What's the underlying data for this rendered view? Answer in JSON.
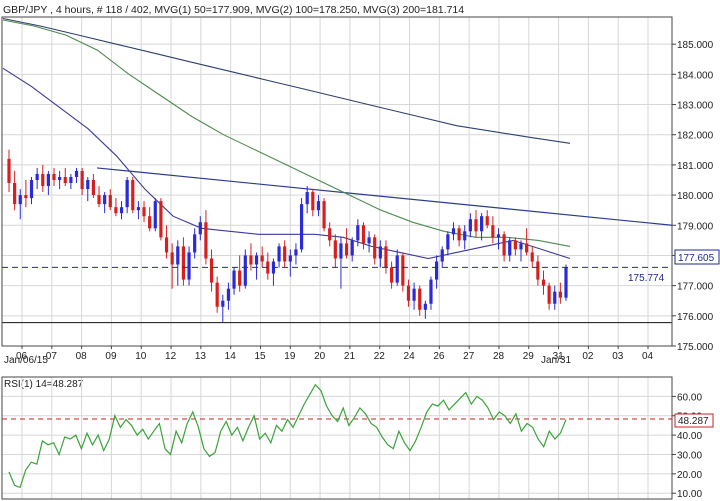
{
  "header": {
    "symbol": "GBP/JPY",
    "timeframe": ", 4 hours, # 118 / 402,",
    "ma1": "MVG(1) 50=177.909,",
    "ma2": "MVG(2) 100=178.250,",
    "ma3": "MVG(3) 200=181.714"
  },
  "rsi_header": "RSI(1) 14=48.287",
  "price_tags": {
    "current": "177.605",
    "support": "175.774"
  },
  "rsi_tag": "48.287",
  "date_labels": {
    "start": "Jan/06/15",
    "end": "Jan/31"
  },
  "colors": {
    "bull": "#2a2ad8",
    "bear": "#d62020",
    "ma50": "#3a3a9a",
    "ma100": "#4e8a4e",
    "ma200": "#2c3f6e",
    "trendline": "#2b3b90",
    "rsi": "#3aa33a",
    "ref_line": "#c82020",
    "price_line": "#1f2a8c",
    "grid": "#d7d7d7"
  },
  "chart_data": [
    {
      "type": "candlestick",
      "title": "GBP/JPY , 4 hours",
      "ylim": [
        175.0,
        185.9
      ],
      "yticks": [
        175.0,
        176.0,
        177.0,
        178.0,
        179.0,
        180.0,
        181.0,
        182.0,
        183.0,
        184.0,
        185.0
      ],
      "x_tick_labels": [
        "06",
        "07",
        "08",
        "09",
        "10",
        "12",
        "13",
        "14",
        "15",
        "19",
        "20",
        "21",
        "22",
        "24",
        "26",
        "27",
        "28",
        "29",
        "31",
        "02",
        "03",
        "04"
      ],
      "current_price": 177.605,
      "support_level": 175.774,
      "moving_averages": [
        {
          "name": "MVG(1) 50",
          "last": 177.909,
          "y": [
            184.2,
            183.6,
            182.9,
            182.2,
            181.3,
            180.2,
            179.3,
            178.9,
            178.8,
            178.7,
            178.7,
            178.7,
            178.6,
            178.3,
            178.1,
            177.9,
            178.1,
            178.3,
            178.5,
            178.2,
            177.9
          ]
        },
        {
          "name": "MVG(2) 100",
          "last": 178.25,
          "y": [
            185.8,
            185.6,
            185.3,
            184.8,
            184.0,
            183.3,
            182.6,
            182.0,
            181.5,
            181.0,
            180.5,
            180.0,
            179.5,
            179.1,
            178.8,
            178.6,
            178.6,
            178.5,
            178.3
          ]
        },
        {
          "name": "MVG(3) 200",
          "last": 181.714,
          "y": [
            185.85,
            185.6,
            185.3,
            185.0,
            184.7,
            184.4,
            184.1,
            183.8,
            183.5,
            183.2,
            182.9,
            182.6,
            182.3,
            182.1,
            181.9,
            181.714
          ]
        }
      ],
      "trendline": {
        "from": 180.9,
        "to": 179.0
      },
      "candles": [
        [
          181.2,
          181.5,
          180.1,
          180.4
        ],
        [
          180.4,
          180.8,
          179.5,
          179.7
        ],
        [
          179.7,
          180.2,
          179.2,
          180.0
        ],
        [
          180.0,
          180.5,
          179.6,
          179.9
        ],
        [
          179.9,
          180.6,
          179.7,
          180.5
        ],
        [
          180.5,
          180.9,
          180.2,
          180.7
        ],
        [
          180.7,
          181.0,
          180.1,
          180.3
        ],
        [
          180.3,
          180.8,
          180.0,
          180.7
        ],
        [
          180.7,
          180.9,
          180.3,
          180.5
        ],
        [
          180.5,
          180.8,
          180.2,
          180.6
        ],
        [
          180.6,
          180.9,
          180.3,
          180.4
        ],
        [
          180.4,
          180.7,
          180.2,
          180.6
        ],
        [
          180.6,
          180.9,
          180.4,
          180.8
        ],
        [
          180.8,
          180.9,
          180.0,
          180.2
        ],
        [
          180.2,
          180.6,
          179.8,
          180.5
        ],
        [
          180.5,
          180.7,
          179.9,
          180.0
        ],
        [
          180.0,
          180.3,
          179.6,
          179.7
        ],
        [
          179.7,
          180.1,
          179.4,
          180.0
        ],
        [
          180.0,
          180.2,
          179.5,
          179.6
        ],
        [
          179.6,
          179.9,
          179.3,
          179.4
        ],
        [
          179.4,
          179.8,
          179.2,
          179.6
        ],
        [
          179.6,
          180.6,
          179.4,
          180.5
        ],
        [
          180.5,
          180.6,
          179.4,
          179.5
        ],
        [
          179.5,
          179.8,
          179.2,
          179.6
        ],
        [
          179.6,
          179.8,
          179.1,
          179.3
        ],
        [
          179.3,
          179.6,
          178.8,
          178.9
        ],
        [
          178.9,
          179.9,
          178.8,
          179.8
        ],
        [
          179.8,
          179.9,
          178.5,
          178.6
        ],
        [
          178.6,
          179.0,
          177.9,
          178.1
        ],
        [
          178.1,
          178.4,
          176.9,
          177.7
        ],
        [
          177.7,
          178.5,
          177.0,
          178.3
        ],
        [
          178.3,
          178.6,
          177.0,
          177.2
        ],
        [
          177.2,
          178.3,
          177.0,
          178.1
        ],
        [
          178.1,
          178.9,
          177.9,
          178.7
        ],
        [
          178.7,
          179.3,
          178.5,
          179.1
        ],
        [
          179.1,
          179.5,
          177.7,
          177.9
        ],
        [
          177.9,
          178.2,
          176.8,
          177.1
        ],
        [
          177.1,
          177.3,
          176.1,
          176.3
        ],
        [
          176.3,
          176.7,
          175.8,
          176.5
        ],
        [
          176.5,
          177.1,
          176.2,
          176.9
        ],
        [
          176.9,
          177.6,
          176.7,
          177.5
        ],
        [
          177.5,
          178.0,
          176.8,
          177.0
        ],
        [
          177.0,
          178.2,
          176.9,
          178.0
        ],
        [
          178.0,
          178.4,
          177.5,
          177.7
        ],
        [
          177.7,
          178.1,
          177.2,
          178.0
        ],
        [
          178.0,
          178.3,
          177.6,
          177.8
        ],
        [
          177.8,
          178.1,
          177.2,
          177.4
        ],
        [
          177.4,
          177.9,
          177.0,
          177.8
        ],
        [
          177.8,
          178.4,
          177.6,
          178.3
        ],
        [
          178.3,
          178.5,
          177.6,
          177.8
        ],
        [
          177.8,
          178.2,
          177.3,
          178.0
        ],
        [
          178.0,
          178.4,
          177.7,
          178.2
        ],
        [
          178.2,
          179.9,
          178.1,
          179.7
        ],
        [
          179.7,
          180.3,
          179.4,
          180.1
        ],
        [
          180.1,
          180.2,
          179.3,
          179.5
        ],
        [
          179.5,
          180.0,
          179.3,
          179.8
        ],
        [
          179.8,
          179.9,
          178.8,
          178.9
        ],
        [
          178.9,
          179.1,
          178.3,
          178.5
        ],
        [
          178.5,
          178.7,
          177.6,
          177.9
        ],
        [
          177.9,
          178.6,
          176.9,
          178.4
        ],
        [
          178.4,
          178.9,
          177.9,
          178.0
        ],
        [
          178.0,
          178.6,
          177.8,
          178.5
        ],
        [
          178.5,
          179.2,
          178.3,
          179.0
        ],
        [
          179.0,
          179.1,
          178.2,
          178.4
        ],
        [
          178.4,
          178.8,
          178.1,
          178.6
        ],
        [
          178.6,
          178.7,
          177.7,
          177.9
        ],
        [
          177.9,
          178.5,
          177.6,
          178.3
        ],
        [
          178.3,
          178.5,
          177.4,
          177.6
        ],
        [
          177.6,
          177.8,
          176.9,
          177.1
        ],
        [
          177.1,
          178.2,
          177.0,
          178.0
        ],
        [
          178.0,
          178.1,
          176.8,
          177.0
        ],
        [
          177.0,
          177.2,
          176.3,
          176.5
        ],
        [
          176.5,
          177.1,
          176.2,
          176.9
        ],
        [
          176.9,
          177.0,
          176.0,
          176.2
        ],
        [
          176.2,
          176.5,
          175.9,
          176.4
        ],
        [
          176.4,
          177.3,
          176.2,
          177.2
        ],
        [
          177.2,
          178.0,
          176.9,
          177.8
        ],
        [
          177.8,
          178.3,
          177.6,
          178.2
        ],
        [
          178.2,
          178.8,
          178.0,
          178.7
        ],
        [
          178.7,
          179.1,
          178.5,
          178.9
        ],
        [
          178.9,
          179.0,
          178.3,
          178.5
        ],
        [
          178.5,
          179.0,
          178.2,
          178.8
        ],
        [
          178.8,
          179.4,
          178.6,
          179.2
        ],
        [
          179.2,
          179.5,
          178.6,
          178.8
        ],
        [
          178.8,
          179.4,
          178.5,
          179.3
        ],
        [
          179.3,
          179.5,
          178.9,
          179.0
        ],
        [
          179.0,
          179.3,
          178.4,
          178.6
        ],
        [
          178.6,
          178.9,
          178.2,
          178.7
        ],
        [
          178.7,
          178.8,
          177.8,
          178.0
        ],
        [
          178.0,
          178.6,
          177.8,
          178.5
        ],
        [
          178.5,
          178.6,
          178.0,
          178.2
        ],
        [
          178.2,
          178.5,
          177.8,
          178.4
        ],
        [
          178.4,
          178.9,
          178.0,
          178.1
        ],
        [
          178.1,
          178.3,
          177.6,
          177.8
        ],
        [
          177.8,
          178.0,
          177.0,
          177.2
        ],
        [
          177.2,
          177.5,
          176.7,
          177.0
        ],
        [
          177.0,
          177.1,
          176.2,
          176.4
        ],
        [
          176.4,
          177.0,
          176.2,
          176.8
        ],
        [
          176.8,
          177.1,
          176.4,
          176.6
        ],
        [
          176.6,
          177.7,
          176.5,
          177.6
        ]
      ]
    },
    {
      "type": "line",
      "title": "RSI(1) 14",
      "last": 48.287,
      "ylim": [
        7,
        70
      ],
      "yticks": [
        10.0,
        20.0,
        30.0,
        40.0,
        50.0,
        60.0
      ],
      "reference_level": 48.287,
      "values": [
        21,
        14,
        13,
        22,
        26,
        25,
        37,
        35,
        36,
        30,
        39,
        38,
        40,
        33,
        41,
        35,
        40,
        32,
        38,
        50,
        44,
        48,
        45,
        40,
        43,
        38,
        42,
        46,
        33,
        30,
        42,
        36,
        46,
        52,
        44,
        33,
        29,
        31,
        42,
        47,
        40,
        44,
        37,
        44,
        50,
        38,
        41,
        36,
        45,
        42,
        48,
        44,
        50,
        56,
        61,
        66,
        63,
        55,
        50,
        47,
        54,
        45,
        49,
        54,
        51,
        46,
        44,
        39,
        35,
        33,
        42,
        36,
        32,
        37,
        44,
        52,
        56,
        55,
        58,
        53,
        56,
        59,
        62,
        56,
        60,
        58,
        54,
        48,
        52,
        50,
        46,
        51,
        42,
        46,
        44,
        38,
        34,
        42,
        38,
        41,
        48
      ]
    }
  ]
}
